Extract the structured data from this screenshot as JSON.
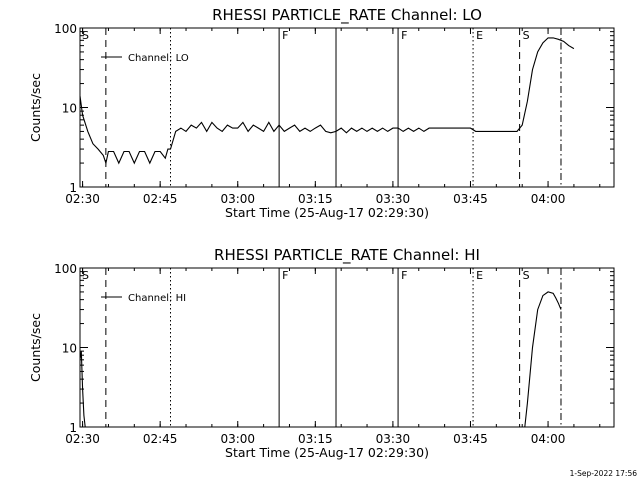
{
  "chart_data": [
    {
      "type": "line",
      "title": "RHESSI PARTICLE_RATE Channel: LO",
      "xlabel": "Start Time (25-Aug-17 02:29:30)",
      "ylabel": "Counts/sec",
      "yscale": "log",
      "ylim": [
        1,
        100
      ],
      "xlim": [
        "02:29:30",
        "04:12:45"
      ],
      "x_ticks": [
        "02:30",
        "02:45",
        "03:00",
        "03:15",
        "03:30",
        "03:45",
        "04:00"
      ],
      "y_ticks": [
        "1",
        "10",
        "100"
      ],
      "legend": {
        "position": "top-left",
        "entries": [
          "Channel: LO"
        ]
      },
      "series": [
        {
          "name": "Channel: LO",
          "x": [
            "02:29:30",
            "02:30:00",
            "02:31:00",
            "02:32:00",
            "02:33:00",
            "02:34:00",
            "02:34:30",
            "02:35:00",
            "02:36:00",
            "02:37:00",
            "02:38:00",
            "02:39:00",
            "02:40:00",
            "02:41:00",
            "02:42:00",
            "02:43:00",
            "02:44:00",
            "02:45:00",
            "02:46:00",
            "02:46:30",
            "02:47:00",
            "02:48:00",
            "02:49:00",
            "02:50:00",
            "02:51:00",
            "02:52:00",
            "02:53:00",
            "02:54:00",
            "02:55:00",
            "02:56:00",
            "02:57:00",
            "02:58:00",
            "02:59:00",
            "03:00:00",
            "03:01:00",
            "03:02:00",
            "03:03:00",
            "03:04:00",
            "03:05:00",
            "03:06:00",
            "03:07:00",
            "03:08:00",
            "03:09:00",
            "03:10:00",
            "03:11:00",
            "03:12:00",
            "03:13:00",
            "03:14:00",
            "03:15:00",
            "03:16:00",
            "03:17:00",
            "03:18:00",
            "03:19:00",
            "03:20:00",
            "03:21:00",
            "03:22:00",
            "03:23:00",
            "03:24:00",
            "03:25:00",
            "03:26:00",
            "03:27:00",
            "03:28:00",
            "03:29:00",
            "03:30:00",
            "03:31:00",
            "03:32:00",
            "03:33:00",
            "03:34:00",
            "03:35:00",
            "03:36:00",
            "03:37:00",
            "03:38:00",
            "03:39:00",
            "03:40:00",
            "03:41:00",
            "03:42:00",
            "03:43:00",
            "03:44:00",
            "03:45:00",
            "03:46:00",
            "03:47:00",
            "03:48:00",
            "03:49:00",
            "03:50:00",
            "03:51:00",
            "03:52:00",
            "03:53:00",
            "03:54:00",
            "03:55:00",
            "03:56:00",
            "03:57:00",
            "03:58:00",
            "03:59:00",
            "04:00:00",
            "04:01:00",
            "04:02:00",
            "04:03:00",
            "04:04:00",
            "04:05:00"
          ],
          "values": [
            14,
            8,
            5,
            3.5,
            3,
            2.5,
            2,
            2.8,
            2.8,
            2,
            2.8,
            2.8,
            2,
            2.8,
            2.8,
            2,
            2.8,
            2.8,
            2.3,
            3,
            3,
            5,
            5.5,
            5,
            6,
            5.5,
            6.5,
            5,
            6.5,
            5.5,
            5,
            6,
            5.5,
            5.5,
            6.5,
            5,
            6,
            5.5,
            5,
            6.5,
            5,
            6,
            5,
            5.5,
            6,
            5,
            5.5,
            5,
            5.5,
            6,
            5,
            4.8,
            5,
            5.5,
            4.8,
            5.5,
            5,
            5.5,
            5,
            5.5,
            5,
            5.5,
            5,
            5.5,
            5.5,
            5,
            5.5,
            5,
            5.5,
            5,
            5.5,
            5.5,
            5.5,
            5.5,
            5.5,
            5.5,
            5.5,
            5.5,
            5.5,
            5,
            5,
            5,
            5,
            5,
            5,
            5,
            5,
            5,
            6,
            12,
            30,
            50,
            65,
            75,
            75,
            72,
            68,
            60,
            55
          ]
        }
      ],
      "vertical_markers": [
        {
          "time": "02:34:30",
          "style": "dashed",
          "label": ""
        },
        {
          "time": "02:47:00",
          "style": "dotted",
          "label": ""
        },
        {
          "time": "03:08:00",
          "style": "solid",
          "label": "F"
        },
        {
          "time": "03:19:00",
          "style": "solid",
          "label": ""
        },
        {
          "time": "03:31:00",
          "style": "solid",
          "label": "F"
        },
        {
          "time": "03:45:30",
          "style": "dotted",
          "label": "E"
        },
        {
          "time": "03:54:30",
          "style": "dashed",
          "label": "S"
        },
        {
          "time": "04:02:30",
          "style": "dashdot",
          "label": ""
        }
      ],
      "corner_label": "S"
    },
    {
      "type": "line",
      "title": "RHESSI PARTICLE_RATE Channel: HI",
      "xlabel": "Start Time (25-Aug-17 02:29:30)",
      "ylabel": "Counts/sec",
      "yscale": "log",
      "ylim": [
        1,
        100
      ],
      "xlim": [
        "02:29:30",
        "04:12:45"
      ],
      "x_ticks": [
        "02:30",
        "02:45",
        "03:00",
        "03:15",
        "03:30",
        "03:45",
        "04:00"
      ],
      "y_ticks": [
        "1",
        "10",
        "100"
      ],
      "legend": {
        "position": "top-left",
        "entries": [
          "Channel: HI"
        ]
      },
      "series": [
        {
          "name": "Channel: HI",
          "segments": [
            {
              "x": [
                "02:29:30",
                "02:29:45",
                "02:30:00",
                "02:30:15",
                "02:30:30"
              ],
              "values": [
                7,
                9,
                3,
                1.4,
                1
              ]
            },
            {
              "x": [
                "03:55:30",
                "03:56:00",
                "03:57:00",
                "03:58:00",
                "03:59:00",
                "04:00:00",
                "04:01:00",
                "04:01:30",
                "04:02:00",
                "04:02:30"
              ],
              "values": [
                1,
                2,
                10,
                30,
                45,
                50,
                48,
                42,
                36,
                30
              ]
            }
          ]
        }
      ],
      "vertical_markers": [
        {
          "time": "02:34:30",
          "style": "dashed",
          "label": ""
        },
        {
          "time": "02:47:00",
          "style": "dotted",
          "label": ""
        },
        {
          "time": "03:08:00",
          "style": "solid",
          "label": "F"
        },
        {
          "time": "03:19:00",
          "style": "solid",
          "label": ""
        },
        {
          "time": "03:31:00",
          "style": "solid",
          "label": "F"
        },
        {
          "time": "03:45:30",
          "style": "dotted",
          "label": "E"
        },
        {
          "time": "03:54:30",
          "style": "dashed",
          "label": "S"
        },
        {
          "time": "04:02:30",
          "style": "dashdot",
          "label": ""
        }
      ],
      "corner_label": "S"
    }
  ],
  "footer": {
    "text": "1-Sep-2022 17:56"
  }
}
